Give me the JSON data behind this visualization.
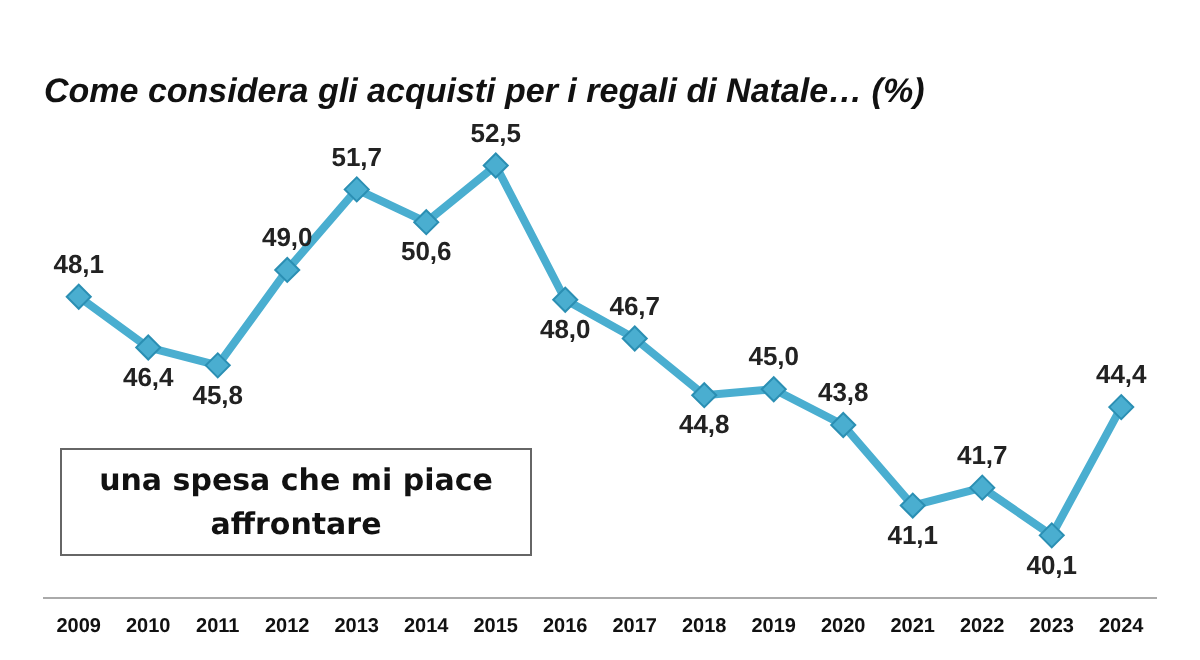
{
  "chart_data": {
    "type": "line",
    "title": "Come considera gli acquisti per i regali di Natale… (%)",
    "categories": [
      "2009",
      "2010",
      "2011",
      "2012",
      "2013",
      "2014",
      "2015",
      "2016",
      "2017",
      "2018",
      "2019",
      "2020",
      "2021",
      "2022",
      "2023",
      "2024"
    ],
    "series": [
      {
        "color": "#4aaed0",
        "values": [
          48.1,
          46.4,
          45.8,
          49.0,
          51.7,
          50.6,
          52.5,
          48.0,
          46.7,
          44.8,
          45.0,
          43.8,
          41.1,
          41.7,
          40.1,
          44.4
        ],
        "value_labels": [
          "48,1",
          "46,4",
          "45,8",
          "49,0",
          "51,7",
          "50,6",
          "52,5",
          "48,0",
          "46,7",
          "44,8",
          "45,0",
          "43,8",
          "41,1",
          "41,7",
          "40,1",
          "44,4"
        ]
      }
    ],
    "annotations": [
      "una spesa che mi piace affrontare"
    ],
    "marker": "diamond",
    "grid": false,
    "legend": false
  }
}
